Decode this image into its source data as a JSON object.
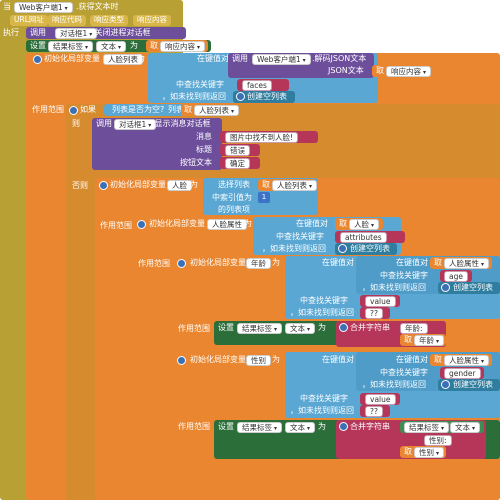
{
  "event": {
    "when": "当",
    "component": "Web客户端1",
    "event_name": ".获得文本时",
    "params": [
      "URL网址",
      "响应代码",
      "响应类型",
      "响应内容"
    ],
    "do": "执行"
  },
  "call_close": {
    "call": "调用",
    "component": "对话框1",
    "method": ".关闭进程对话框"
  },
  "set_text": {
    "set": "设置",
    "component": "结果标签",
    "prop": "文本",
    "to": "为",
    "get": "取",
    "var": "响应内容"
  },
  "init_faces": {
    "init": "初始化局部变量",
    "var": "人脸列表",
    "to": "为"
  },
  "lookup1": {
    "lookup": "在键值对",
    "call": "调用",
    "component": "Web客户端1",
    "method": ".解码JSON文本",
    "json_text": "JSON文本",
    "get": "取",
    "var": "响应内容",
    "find_key": "中查找关键字",
    "key": "faces",
    "not_found": "，如未找到则返回",
    "create_empty": "创建空列表"
  },
  "scope": "作用范围",
  "if_block": {
    "if": "如果",
    "is_empty": "列表是否为空?",
    "list": "列表",
    "get": "取",
    "var": "人脸列表",
    "then": "则",
    "else": "否则"
  },
  "show_alert": {
    "call": "调用",
    "component": "对话框1",
    "method": ".显示消息对话框",
    "message_label": "消息",
    "message": "图片中找不到人脸!",
    "title_label": "标题",
    "title": "错误",
    "button_label": "按钮文本",
    "button": "确定"
  },
  "init_face": {
    "init": "初始化局部变量",
    "var": "人脸",
    "to": "为"
  },
  "select_item": {
    "select": "选择列表",
    "get": "取",
    "var": "人脸列表",
    "index_label": "中索引值为",
    "index": "1",
    "item": "的列表项"
  },
  "init_attrs": {
    "init": "初始化局部变量",
    "var": "人脸属性",
    "to": "为"
  },
  "lookup2": {
    "lookup": "在键值对",
    "get": "取",
    "var": "人脸",
    "find_key": "中查找关键字",
    "key": "attributes",
    "not_found": "，如未找到则返回",
    "create_empty": "创建空列表"
  },
  "init_age": {
    "init": "初始化局部变量",
    "var": "年龄",
    "to": "为"
  },
  "lookup_age_attr": {
    "lookup": "在键值对",
    "get": "取",
    "var": "人脸属性",
    "find_key": "中查找关键字",
    "key": "age",
    "not_found": "，如未找到则返回",
    "create_empty": "创建空列表"
  },
  "lookup_age_val": {
    "find_key": "中查找关键字",
    "key": "value",
    "not_found": "，如未找到则返回",
    "default": "??"
  },
  "set_age": {
    "set": "设置",
    "component": "结果标签",
    "prop": "文本",
    "to": "为",
    "join": "合并字符串",
    "label": "年龄:",
    "get": "取",
    "var": "年龄"
  },
  "init_gender": {
    "init": "初始化局部变量",
    "var": "性别",
    "to": "为"
  },
  "lookup_gender_attr": {
    "lookup": "在键值对",
    "get": "取",
    "var": "人脸属性",
    "find_key": "中查找关键字",
    "key": "gender",
    "not_found": "，如未找到则返回",
    "create_empty": "创建空列表"
  },
  "lookup_gender_val": {
    "find_key": "中查找关键字",
    "key": "value",
    "not_found": "，如未找到则返回",
    "default": "??"
  },
  "set_gender": {
    "set": "设置",
    "component": "结果标签",
    "prop": "文本",
    "to": "为",
    "join": "合并字符串",
    "src_component": "结果标签",
    "src_prop": "文本",
    "label": "性别:",
    "get": "取",
    "var": "性别"
  }
}
